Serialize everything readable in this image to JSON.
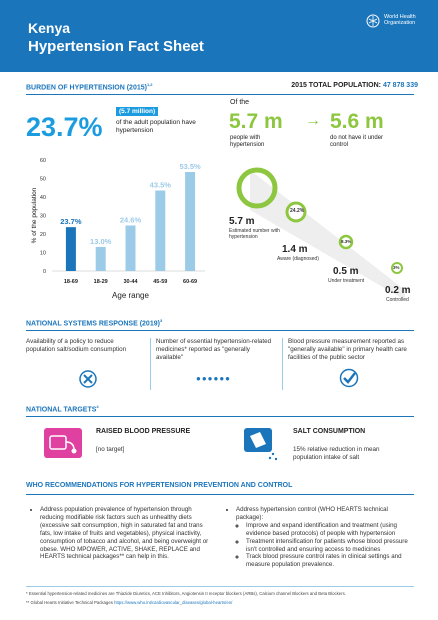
{
  "header": {
    "title_line1": "Kenya",
    "title_line2": "Hypertension Fact Sheet",
    "org_name": "World Health Organization"
  },
  "burden": {
    "heading": "BURDEN OF HYPERTENSION (2015)",
    "heading_sup": "1,2",
    "total_label": "2015 TOTAL POPULATION:",
    "total_value": "47 878 339",
    "percent": "23.7%",
    "million": "(5.7 million)",
    "adult_text": "of the adult population have hypertension"
  },
  "chart_data": {
    "type": "bar",
    "categories": [
      "18-69",
      "18-29",
      "30-44",
      "45-59",
      "60-69"
    ],
    "values": [
      23.7,
      13.0,
      24.6,
      43.5,
      53.5
    ],
    "value_labels": [
      "23.7%",
      "13.0%",
      "24.6%",
      "43.5%",
      "53.5%"
    ],
    "xlabel": "Age range",
    "ylabel": "% of the population",
    "ylim": [
      0,
      60
    ],
    "yticks": [
      "0",
      "10",
      "20",
      "30",
      "40",
      "50",
      "60"
    ],
    "colors": [
      "#1b75bb",
      "#9ccbe8",
      "#9ccbe8",
      "#9ccbe8",
      "#9ccbe8"
    ],
    "label_colors": [
      "#1b75bb",
      "#9ccbe8",
      "#9ccbe8",
      "#9ccbe8",
      "#9ccbe8"
    ]
  },
  "cascade": {
    "of_the": "Of the",
    "big1": "5.7 m",
    "arrow": "→",
    "big2": "5.6 m",
    "sub1": "people with hypertension",
    "sub2": "do not have it under control",
    "steps": [
      {
        "value": "5.7 m",
        "label": "Estimated number with hypertension",
        "pct": ""
      },
      {
        "value": "1.4 m",
        "label": "Aware (diagnosed)",
        "pct": "24.2%"
      },
      {
        "value": "0.5 m",
        "label": "Under treatment",
        "pct": "8.3%"
      },
      {
        "value": "0.2 m",
        "label": "Controlled",
        "pct": "3%"
      }
    ],
    "color": "#8dc63f"
  },
  "systems": {
    "heading": "NATIONAL SYSTEMS RESPONSE (2019)",
    "heading_sup": "3",
    "col1": "Availability of a policy to reduce population salt/sodium consumption",
    "col2": "Number of essential hypertension-related medicines* reported as \"generally available\"",
    "col3": "Blood pressure measurement reported as \"generally available\" in primary health care facilities of the public sector",
    "dots": "●●●●●●"
  },
  "targets": {
    "heading": "NATIONAL TARGETS",
    "heading_sup": "4",
    "t1_title": "RAISED BLOOD PRESSURE",
    "t1_text": "[no target]",
    "t2_title": "SALT CONSUMPTION",
    "t2_text": "15% relative reduction in mean population intake of salt"
  },
  "recs": {
    "heading": "WHO RECOMMENDATIONS FOR HYPERTENSION PREVENTION AND CONTROL",
    "left": "Address population prevalence of hypertension through reducing modifiable risk factors such as unhealthy diets (excessive salt consumption, high in saturated fat and trans fats, low intake of fruits and vegetables), physical inactivity, consumption of tobacco and alcohol, and being overweight or obese. WHO MPOWER, ACTIVE, SHAKE, REPLACE and HEARTS technical packages** can help in this.",
    "right_intro": "Address hypertension control (WHO HEARTS technical package):",
    "right_items": [
      "Improve and expand identification and treatment (using evidence based protocols) of people with hypertension",
      "Treatment intensification for patients whose blood pressure isn't controlled and ensuring access to medicines",
      "Track blood pressure control rates in clinical settings and measure population prevalence."
    ]
  },
  "footnotes": {
    "f1": "* Essential hypertension-related medicines are Thiazide Diuretics, ACE Inhibitors, Angiotensin II receptor blockers (ARBs), Calcium channel Blockers and Beta Blockers.",
    "f2_prefix": "** Global Hearts Initiative Technical Packages ",
    "f2_link": "https://www.who.int/cardiovascular_diseases/global-hearts/en/"
  }
}
